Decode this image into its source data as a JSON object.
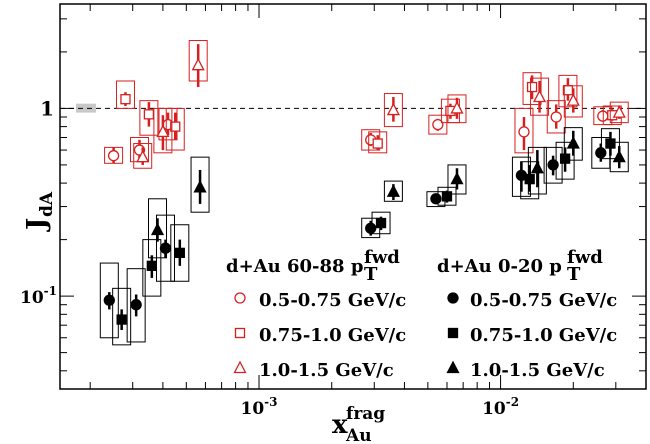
{
  "chart_data": {
    "type": "scatter",
    "x_scale": "log",
    "y_scale": "log",
    "xlim": [
      0.00015,
      0.04
    ],
    "ylim": [
      0.032,
      3.6
    ],
    "xlabel": {
      "main": "x",
      "sup": "frag",
      "sub": "Au"
    },
    "ylabel": {
      "main": "J",
      "sub": "dA"
    },
    "x_ticks": [
      {
        "value": 0.001,
        "base": "10",
        "exp": "-3"
      },
      {
        "value": 0.01,
        "base": "10",
        "exp": "-2"
      }
    ],
    "y_ticks": [
      {
        "value": 1,
        "label": "1"
      },
      {
        "value": 0.1,
        "base": "10",
        "exp": "-1"
      }
    ],
    "reference_line": 1,
    "reference_band_y": [
      0.95,
      1.06
    ],
    "colors": {
      "peripheral": "#d62020",
      "central": "#000000",
      "band": "#c8c8c8"
    },
    "legend": {
      "left_header": {
        "text": "d+Au 60-88 p",
        "sup": "fwd",
        "sub": "T"
      },
      "right_header": {
        "text": "d+Au 0-20 p",
        "sup": "fwd",
        "sub": "T"
      },
      "entries": [
        "0.5-0.75 GeV/c",
        "0.75-1.0 GeV/c",
        "1.0-1.5 GeV/c"
      ]
    },
    "series": [
      {
        "name": "d+Au 60-88 0.5-0.75 GeV/c",
        "color": "#d62020",
        "marker": "circle-open",
        "points": [
          {
            "x": 0.00025,
            "y": 0.56,
            "err": [
              0.51,
              0.62
            ],
            "sys": [
              0.51,
              0.62
            ]
          },
          {
            "x": 0.00032,
            "y": 0.6,
            "err": [
              0.54,
              0.68
            ],
            "sys": [
              0.52,
              0.7
            ]
          },
          {
            "x": 0.00042,
            "y": 0.82,
            "err": [
              0.72,
              0.95
            ],
            "sys": [
              0.68,
              1.0
            ]
          },
          {
            "x": 0.0029,
            "y": 0.68,
            "err": [
              0.63,
              0.74
            ],
            "sys": [
              0.6,
              0.77
            ]
          },
          {
            "x": 0.0055,
            "y": 0.82,
            "err": [
              0.76,
              0.88
            ],
            "sys": [
              0.73,
              0.92
            ]
          },
          {
            "x": 0.0125,
            "y": 0.75,
            "err": [
              0.6,
              0.9
            ],
            "sys": [
              0.58,
              1.0
            ]
          },
          {
            "x": 0.017,
            "y": 0.9,
            "err": [
              0.78,
              1.05
            ],
            "sys": [
              0.74,
              1.1
            ]
          },
          {
            "x": 0.0265,
            "y": 0.91,
            "err": [
              0.85,
              0.98
            ],
            "sys": [
              0.82,
              1.02
            ]
          }
        ]
      },
      {
        "name": "d+Au 60-88 0.75-1.0 GeV/c",
        "color": "#d62020",
        "marker": "square-open",
        "points": [
          {
            "x": 0.00028,
            "y": 1.12,
            "err": [
              1.03,
              1.22
            ],
            "sys": [
              1.0,
              1.4
            ]
          },
          {
            "x": 0.00035,
            "y": 0.93,
            "err": [
              0.8,
              1.08
            ],
            "sys": [
              0.72,
              1.1
            ]
          },
          {
            "x": 0.00045,
            "y": 0.8,
            "err": [
              0.68,
              0.95
            ],
            "sys": [
              0.6,
              1.0
            ]
          },
          {
            "x": 0.0031,
            "y": 0.65,
            "err": [
              0.6,
              0.72
            ],
            "sys": [
              0.58,
              0.75
            ]
          },
          {
            "x": 0.0062,
            "y": 0.97,
            "err": [
              0.88,
              1.06
            ],
            "sys": [
              0.84,
              1.12
            ]
          },
          {
            "x": 0.0135,
            "y": 1.3,
            "err": [
              1.12,
              1.5
            ],
            "sys": [
              1.05,
              1.55
            ]
          },
          {
            "x": 0.019,
            "y": 1.25,
            "err": [
              1.1,
              1.45
            ],
            "sys": [
              1.02,
              1.5
            ]
          },
          {
            "x": 0.029,
            "y": 0.92,
            "err": [
              0.86,
              0.99
            ],
            "sys": [
              0.82,
              1.03
            ]
          }
        ]
      },
      {
        "name": "d+Au 60-88 1.0-1.5 GeV/c",
        "color": "#d62020",
        "marker": "triangle-open",
        "points": [
          {
            "x": 0.00033,
            "y": 0.55,
            "err": [
              0.5,
              0.62
            ],
            "sys": [
              0.48,
              0.65
            ]
          },
          {
            "x": 0.0004,
            "y": 0.75,
            "err": [
              0.6,
              0.92
            ],
            "sys": [
              0.58,
              1.0
            ]
          },
          {
            "x": 0.00056,
            "y": 1.7,
            "err": [
              1.3,
              2.2
            ],
            "sys": [
              1.4,
              2.3
            ]
          },
          {
            "x": 0.0036,
            "y": 0.98,
            "err": [
              0.85,
              1.15
            ],
            "sys": [
              0.8,
              1.2
            ]
          },
          {
            "x": 0.0066,
            "y": 1.0,
            "err": [
              0.88,
              1.14
            ],
            "sys": [
              0.84,
              1.18
            ]
          },
          {
            "x": 0.0145,
            "y": 1.15,
            "err": [
              0.95,
              1.4
            ],
            "sys": [
              0.92,
              1.45
            ]
          },
          {
            "x": 0.02,
            "y": 1.1,
            "err": [
              0.95,
              1.28
            ],
            "sys": [
              0.9,
              1.32
            ]
          },
          {
            "x": 0.031,
            "y": 0.95,
            "err": [
              0.88,
              1.03
            ],
            "sys": [
              0.84,
              1.08
            ]
          }
        ]
      },
      {
        "name": "d+Au 0-20 0.5-0.75 GeV/c",
        "color": "#000000",
        "marker": "circle-filled",
        "points": [
          {
            "x": 0.00024,
            "y": 0.095,
            "err": [
              0.085,
              0.105
            ],
            "sys": [
              0.06,
              0.15
            ]
          },
          {
            "x": 0.00031,
            "y": 0.09,
            "err": [
              0.078,
              0.102
            ],
            "sys": [
              0.057,
              0.14
            ]
          },
          {
            "x": 0.00041,
            "y": 0.18,
            "err": [
              0.16,
              0.2
            ],
            "sys": [
              0.12,
              0.27
            ]
          },
          {
            "x": 0.0029,
            "y": 0.23,
            "err": [
              0.21,
              0.252
            ],
            "sys": [
              0.205,
              0.26
            ]
          },
          {
            "x": 0.0054,
            "y": 0.33,
            "err": [
              0.31,
              0.35
            ],
            "sys": [
              0.3,
              0.36
            ]
          },
          {
            "x": 0.0122,
            "y": 0.44,
            "err": [
              0.36,
              0.52
            ],
            "sys": [
              0.34,
              0.55
            ]
          },
          {
            "x": 0.0165,
            "y": 0.5,
            "err": [
              0.44,
              0.56
            ],
            "sys": [
              0.4,
              0.62
            ]
          },
          {
            "x": 0.026,
            "y": 0.58,
            "err": [
              0.52,
              0.65
            ],
            "sys": [
              0.48,
              0.7
            ]
          }
        ]
      },
      {
        "name": "d+Au 0-20 0.75-1.0 GeV/c",
        "color": "#000000",
        "marker": "square-filled",
        "points": [
          {
            "x": 0.00027,
            "y": 0.075,
            "err": [
              0.066,
              0.085
            ],
            "sys": [
              0.055,
              0.11
            ]
          },
          {
            "x": 0.00036,
            "y": 0.145,
            "err": [
              0.125,
              0.165
            ],
            "sys": [
              0.1,
              0.2
            ]
          },
          {
            "x": 0.00047,
            "y": 0.17,
            "err": [
              0.145,
              0.2
            ],
            "sys": [
              0.12,
              0.24
            ]
          },
          {
            "x": 0.0032,
            "y": 0.245,
            "err": [
              0.225,
              0.265
            ],
            "sys": [
              0.215,
              0.28
            ]
          },
          {
            "x": 0.006,
            "y": 0.34,
            "err": [
              0.315,
              0.365
            ],
            "sys": [
              0.305,
              0.38
            ]
          },
          {
            "x": 0.0132,
            "y": 0.42,
            "err": [
              0.36,
              0.5
            ],
            "sys": [
              0.33,
              0.52
            ]
          },
          {
            "x": 0.0185,
            "y": 0.54,
            "err": [
              0.46,
              0.62
            ],
            "sys": [
              0.42,
              0.66
            ]
          },
          {
            "x": 0.0285,
            "y": 0.65,
            "err": [
              0.56,
              0.75
            ],
            "sys": [
              0.54,
              0.78
            ]
          }
        ]
      },
      {
        "name": "d+Au 0-20 1.0-1.5 GeV/c",
        "color": "#000000",
        "marker": "triangle-filled",
        "points": [
          {
            "x": 0.00038,
            "y": 0.225,
            "err": [
              0.195,
              0.26
            ],
            "sys": [
              0.16,
              0.33
            ]
          },
          {
            "x": 0.00057,
            "y": 0.38,
            "err": [
              0.31,
              0.47
            ],
            "sys": [
              0.28,
              0.55
            ]
          },
          {
            "x": 0.0036,
            "y": 0.36,
            "err": [
              0.325,
              0.395
            ],
            "sys": [
              0.32,
              0.41
            ]
          },
          {
            "x": 0.0066,
            "y": 0.42,
            "err": [
              0.37,
              0.48
            ],
            "sys": [
              0.35,
              0.5
            ]
          },
          {
            "x": 0.0142,
            "y": 0.48,
            "err": [
              0.38,
              0.6
            ],
            "sys": [
              0.35,
              0.62
            ]
          },
          {
            "x": 0.02,
            "y": 0.65,
            "err": [
              0.56,
              0.76
            ],
            "sys": [
              0.53,
              0.79
            ]
          },
          {
            "x": 0.031,
            "y": 0.55,
            "err": [
              0.48,
              0.63
            ],
            "sys": [
              0.46,
              0.66
            ]
          }
        ]
      }
    ]
  }
}
